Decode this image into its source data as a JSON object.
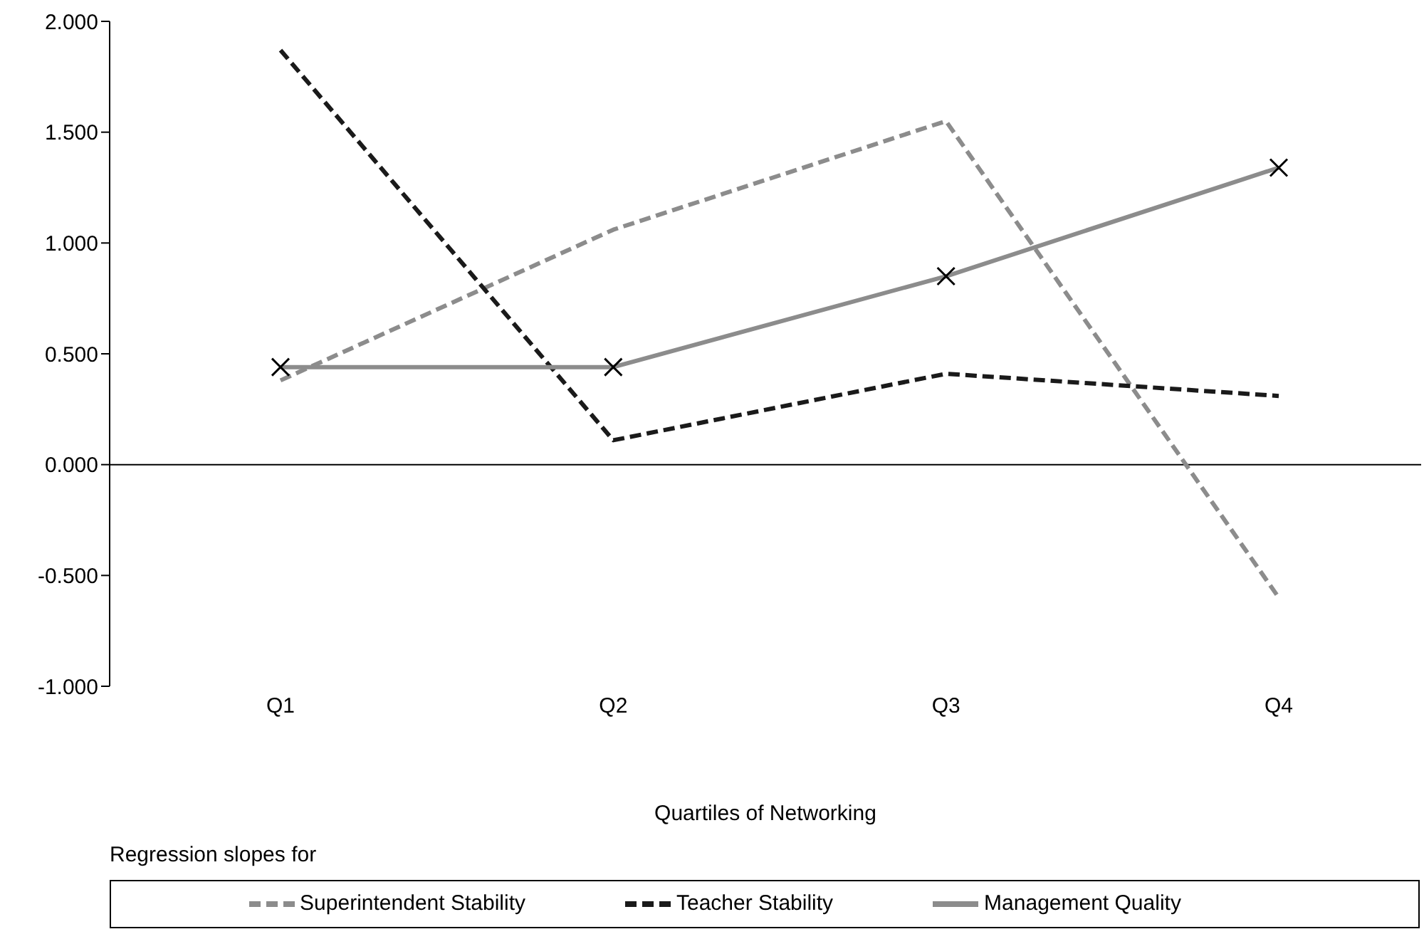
{
  "chart_data": {
    "type": "line",
    "xlabel": "Quartiles of Networking",
    "legend_title": "Regression slopes for",
    "categories": [
      "Q1",
      "Q2",
      "Q3",
      "Q4"
    ],
    "series": [
      {
        "name": "Superintendent Stability",
        "color": "#8c8c8c",
        "line_style": "dashed",
        "marker": "none",
        "values": [
          0.38,
          1.06,
          1.55,
          -0.6
        ]
      },
      {
        "name": "Teacher Stability",
        "color": "#1a1a1a",
        "line_style": "dashed",
        "marker": "none",
        "values": [
          1.87,
          0.11,
          0.41,
          0.31
        ]
      },
      {
        "name": "Management Quality",
        "color": "#8c8c8c",
        "line_style": "solid",
        "marker": "cross",
        "values": [
          0.44,
          0.44,
          0.85,
          1.34
        ]
      }
    ],
    "ylim": [
      -1,
      2
    ],
    "yticks": [
      {
        "value": -1,
        "label": "-1.000"
      },
      {
        "value": -0.5,
        "label": "-0.500"
      },
      {
        "value": 0,
        "label": "0.000"
      },
      {
        "value": 0.5,
        "label": "0.500"
      },
      {
        "value": 1,
        "label": "1.000"
      },
      {
        "value": 1.5,
        "label": "1.500"
      },
      {
        "value": 2,
        "label": "2.000"
      }
    ],
    "ref_lines": [
      {
        "axis": "y",
        "value": 0,
        "color": "#000000"
      }
    ],
    "grid": false,
    "legend": "bottom"
  }
}
